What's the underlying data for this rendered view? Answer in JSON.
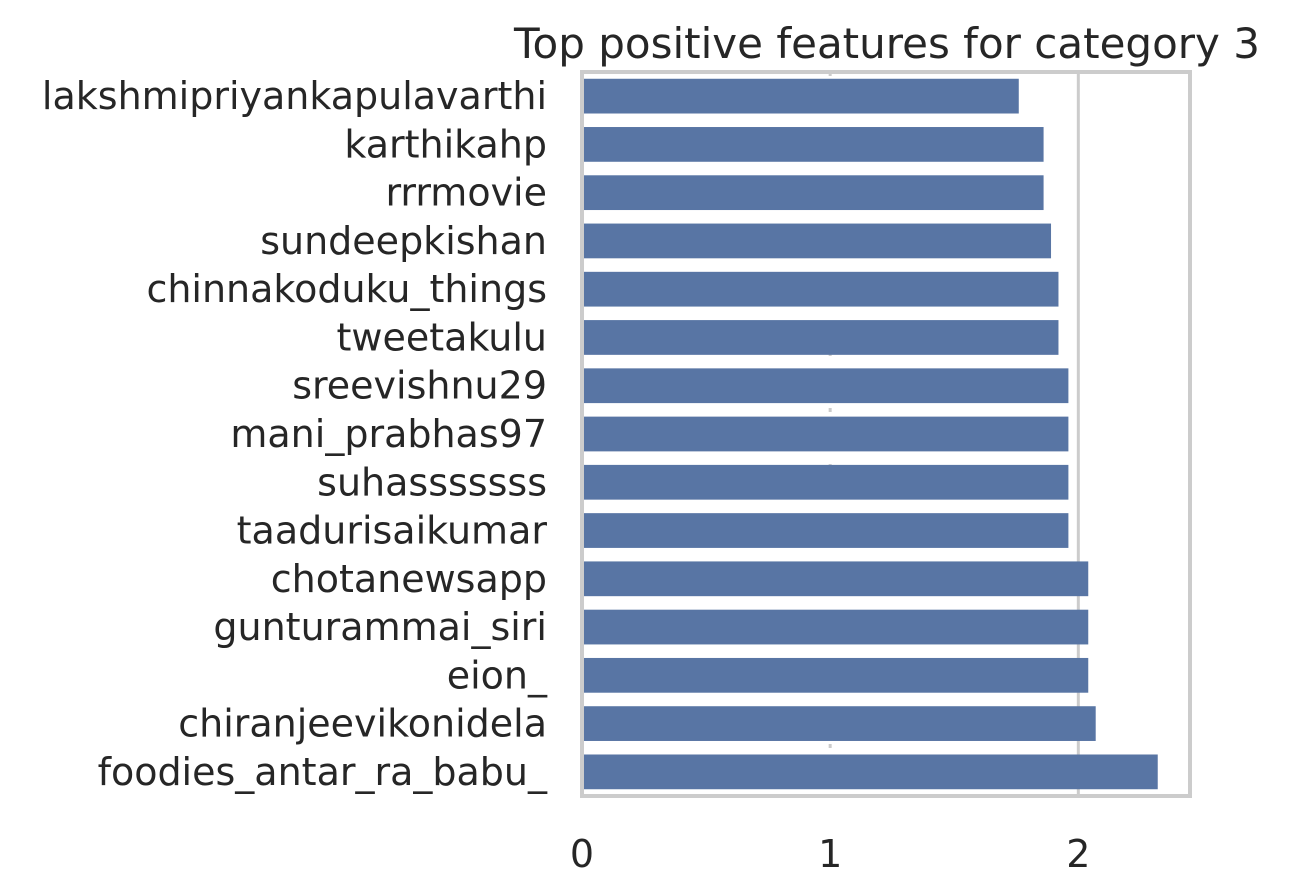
{
  "chart_data": {
    "type": "bar",
    "orientation": "horizontal",
    "title": "Top positive features for category 3",
    "xlabel": "",
    "ylabel": "",
    "xlim": [
      0,
      2.45
    ],
    "xticks": [
      0,
      1,
      2
    ],
    "xtick_labels": [
      "0",
      "1",
      "2"
    ],
    "grid": true,
    "bar_color": "#5875a4",
    "categories": [
      "lakshmipriyankapulavarthi",
      "karthikahp",
      "rrrmovie",
      "sundeepkishan",
      "chinnakoduku_things",
      "tweetakulu",
      "sreevishnu29",
      "mani_prabhas97",
      "suhasssssss",
      "taadurisaikumar",
      "chotanewsapp",
      "gunturammai_siri",
      "eion_",
      "chiranjeevikonidela",
      "foodies_antar_ra_babu_"
    ],
    "values": [
      1.76,
      1.86,
      1.86,
      1.89,
      1.92,
      1.92,
      1.96,
      1.96,
      1.96,
      1.96,
      2.04,
      2.04,
      2.04,
      2.07,
      2.32
    ]
  }
}
